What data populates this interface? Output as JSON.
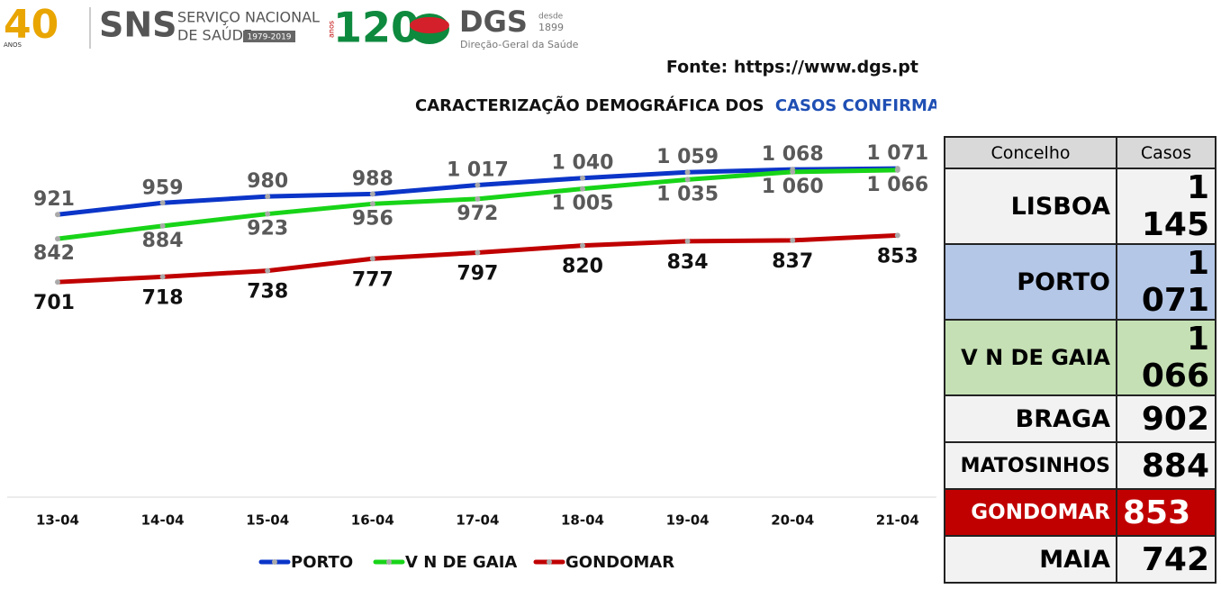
{
  "header": {
    "sns_years": "40",
    "sns_years_word": "ANOS",
    "sns": "SNS",
    "sns_name_1": "SERVIÇO NACIONAL",
    "sns_name_2": "DE SAÚDE",
    "sns_period": "1979-2019",
    "dgs_years": "120",
    "dgs_years_word": "anos",
    "dgs": "DGS",
    "dgs_since_1": "desde",
    "dgs_since_2": "1899",
    "dgs_name": "Direção-Geral da Saúde"
  },
  "source": "Fonte: https://www.dgs.pt",
  "title": "CARACTERIZAÇÃO DEMOGRÁFICA DOS",
  "title_highlight": "CASOS CONFIRMADOS",
  "chart_data": {
    "type": "line",
    "categories": [
      "13-04",
      "14-04",
      "15-04",
      "16-04",
      "17-04",
      "18-04",
      "19-04",
      "20-04",
      "21-04"
    ],
    "series": [
      {
        "name": "PORTO",
        "color": "#0b35c8",
        "values": [
          921,
          959,
          980,
          988,
          1017,
          1040,
          1059,
          1068,
          1071
        ],
        "value_labels": [
          "921",
          "959",
          "980",
          "988",
          "1 017",
          "1 040",
          "1 059",
          "1 068",
          "1 071"
        ]
      },
      {
        "name": "V N DE GAIA",
        "color": "#18d418",
        "values": [
          842,
          884,
          923,
          956,
          972,
          1005,
          1035,
          1060,
          1066
        ],
        "value_labels": [
          "842",
          "884",
          "923",
          "956",
          "972",
          "1 005",
          "1 035",
          "1 060",
          "1 066"
        ]
      },
      {
        "name": "GONDOMAR",
        "color": "#c00000",
        "values": [
          701,
          718,
          738,
          777,
          797,
          820,
          834,
          837,
          853
        ],
        "value_labels": [
          "701",
          "718",
          "738",
          "777",
          "797",
          "820",
          "834",
          "837",
          "853"
        ]
      }
    ],
    "ylim": [
      0,
      1180
    ]
  },
  "table": {
    "headers": [
      "Concelho",
      "Casos"
    ],
    "rows": [
      [
        "LISBOA",
        "1 145"
      ],
      [
        "PORTO",
        "1 071"
      ],
      [
        "V N DE GAIA",
        "1 066"
      ],
      [
        "BRAGA",
        "902"
      ],
      [
        "MATOSINHOS",
        "884"
      ],
      [
        "GONDOMAR",
        "853"
      ],
      [
        "MAIA",
        "742"
      ]
    ]
  }
}
